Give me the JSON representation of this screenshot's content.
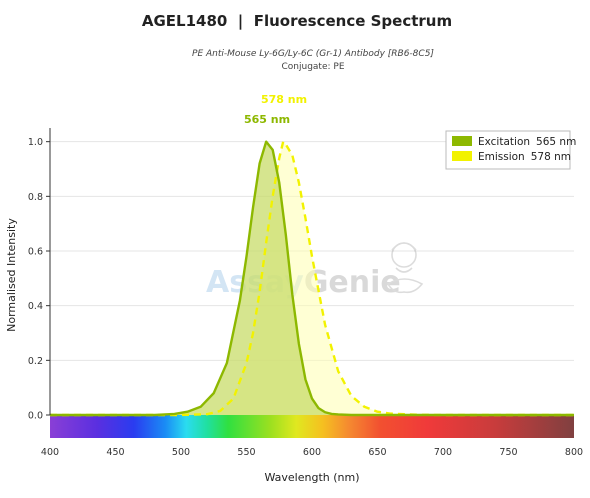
{
  "header": {
    "title": "AGEL1480  |  Fluorescence Spectrum",
    "subtitle": "PE Anti-Mouse Ly-6G/Ly-6C (Gr-1) Antibody [RB6-8C5]",
    "conjugate": "Conjugate: PE"
  },
  "watermark": {
    "text_a": "Assay",
    "text_b": "Genie",
    "icon": "genie-lamp-icon"
  },
  "colors": {
    "excitation_line": "#8db800",
    "excitation_fill": "#c8dc6a",
    "emission_line": "#f2f200",
    "emission_fill": "#ffffb0",
    "grid": "#e4e4e4"
  },
  "chart_data": {
    "type": "area",
    "xlabel": "Wavelength (nm)",
    "ylabel": "Normalised Intensity",
    "xlim": [
      400,
      800
    ],
    "ylim": [
      0,
      1.05
    ],
    "x_ticks": [
      400,
      450,
      500,
      550,
      600,
      650,
      700,
      750,
      800
    ],
    "y_ticks": [
      0.0,
      0.2,
      0.4,
      0.6,
      0.8,
      1.0
    ],
    "y_tick_labels": [
      "0.0",
      "0.2",
      "0.4",
      "0.6",
      "0.8",
      "1.0"
    ],
    "grid": true,
    "legend_position": "top-right",
    "spectrum_bar": true,
    "series": [
      {
        "name": "Excitation",
        "legend_value": "565 nm",
        "peak_label": "565 nm",
        "peak": 565,
        "line_style": "solid",
        "x": [
          400,
          480,
          495,
          505,
          515,
          525,
          535,
          545,
          550,
          555,
          560,
          565,
          570,
          575,
          580,
          585,
          590,
          595,
          600,
          605,
          610,
          615,
          620,
          630,
          640,
          800
        ],
        "y": [
          0.0,
          0.0,
          0.004,
          0.012,
          0.03,
          0.08,
          0.19,
          0.42,
          0.58,
          0.76,
          0.92,
          1.0,
          0.97,
          0.85,
          0.66,
          0.44,
          0.26,
          0.13,
          0.06,
          0.025,
          0.01,
          0.004,
          0.002,
          0.0,
          0.0,
          0.0
        ]
      },
      {
        "name": "Emission",
        "legend_value": "578 nm",
        "peak_label": "578 nm",
        "peak": 578,
        "line_style": "dashed",
        "x": [
          400,
          500,
          520,
          530,
          540,
          550,
          555,
          560,
          565,
          570,
          575,
          578,
          580,
          585,
          590,
          595,
          600,
          610,
          620,
          630,
          640,
          650,
          660,
          680,
          700,
          800
        ],
        "y": [
          0.0,
          0.0,
          0.003,
          0.015,
          0.06,
          0.19,
          0.3,
          0.45,
          0.63,
          0.8,
          0.94,
          1.0,
          0.99,
          0.95,
          0.85,
          0.72,
          0.58,
          0.33,
          0.16,
          0.07,
          0.03,
          0.012,
          0.005,
          0.001,
          0.0,
          0.0
        ]
      }
    ]
  }
}
